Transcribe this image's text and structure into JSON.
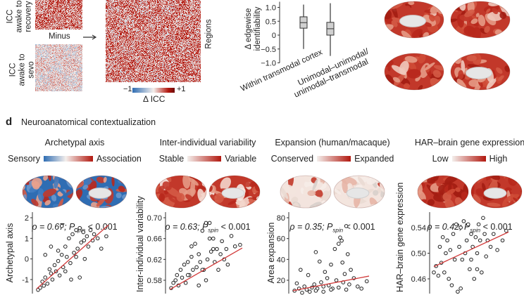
{
  "panel_c": {
    "matrix1_label_line1": "ICC",
    "matrix1_label_line2": "awake to",
    "matrix1_label_line3": "recovery",
    "minus_label": "Minus",
    "matrix2_label_line1": "ICC",
    "matrix2_label_line2": "awake to",
    "matrix2_label_line3": "sevo",
    "regions_label": "Regions",
    "colorbar_min": "−1",
    "colorbar_max": "+1",
    "colorbar_label": "Δ ICC",
    "colors": {
      "negative": "#2f6db3",
      "neutral": "#f4efec",
      "positive": "#b2180f"
    }
  },
  "chart_data": [
    {
      "type": "box",
      "ylabel_line1": "Δ edgewise",
      "ylabel_line2": "identifiability",
      "yticks": [
        "1.0",
        "0.5",
        "0",
        "−0.5",
        "−1.0"
      ],
      "ylim": [
        -1.0,
        1.0
      ],
      "categories": [
        "Within transmodal cortex",
        "Unimodal–unimodal/",
        "unimodal–transmodal"
      ],
      "boxes": [
        {
          "category": "Within transmodal cortex",
          "whisker_low": -0.5,
          "q1": 0.25,
          "median": 0.45,
          "q3": 0.66,
          "whisker_high": 1.1
        },
        {
          "category": "Unimodal–unimodal/unimodal–transmodal",
          "whisker_low": -0.75,
          "q1": 0.0,
          "median": 0.23,
          "q3": 0.46,
          "whisker_high": 1.15
        }
      ]
    },
    {
      "type": "scatter",
      "ylabel": "Archetypal axis",
      "yticks": [
        2,
        1,
        0,
        -1
      ],
      "ylim": [
        -1.6,
        2
      ],
      "fit": [
        -1.45,
        1.65
      ],
      "points": [
        [
          0.02,
          -1.5
        ],
        [
          0.05,
          -1.4
        ],
        [
          0.08,
          -1.1
        ],
        [
          0.1,
          -1.3
        ],
        [
          0.12,
          -0.9
        ],
        [
          0.15,
          -1.2
        ],
        [
          0.18,
          -0.5
        ],
        [
          0.2,
          -0.7
        ],
        [
          0.22,
          -1.0
        ],
        [
          0.25,
          -0.3
        ],
        [
          0.27,
          -0.6
        ],
        [
          0.3,
          -0.1
        ],
        [
          0.32,
          -0.8
        ],
        [
          0.35,
          0.2
        ],
        [
          0.37,
          -0.4
        ],
        [
          0.4,
          0.6
        ],
        [
          0.42,
          0.1
        ],
        [
          0.45,
          1.0
        ],
        [
          0.47,
          -0.2
        ],
        [
          0.5,
          1.2
        ],
        [
          0.52,
          0.3
        ],
        [
          0.55,
          1.4
        ],
        [
          0.57,
          0.5
        ],
        [
          0.6,
          1.5
        ],
        [
          0.62,
          0.8
        ],
        [
          0.65,
          1.3
        ],
        [
          0.67,
          0.0
        ],
        [
          0.7,
          1.1
        ],
        [
          0.72,
          0.6
        ],
        [
          0.75,
          1.4
        ],
        [
          0.78,
          0.9
        ],
        [
          0.8,
          1.2
        ],
        [
          0.85,
          1.0
        ],
        [
          0.9,
          0.5
        ],
        [
          0.97,
          1.1
        ],
        [
          0.12,
          0.2
        ],
        [
          0.2,
          0.6
        ],
        [
          0.35,
          1.6
        ],
        [
          0.48,
          -1.0
        ],
        [
          0.6,
          -0.9
        ],
        [
          0.4,
          -0.6
        ],
        [
          0.55,
          0.1
        ],
        [
          0.66,
          0.9
        ],
        [
          0.3,
          0.4
        ]
      ]
    },
    {
      "type": "scatter",
      "ylabel": "Inter-individual variability",
      "yticks": [
        0.7,
        0.66,
        0.62,
        0.58
      ],
      "ylim": [
        0.56,
        0.7
      ],
      "fit": [
        0.562,
        0.642
      ],
      "points": [
        [
          0.02,
          0.565
        ],
        [
          0.05,
          0.575
        ],
        [
          0.08,
          0.58
        ],
        [
          0.1,
          0.59
        ],
        [
          0.12,
          0.57
        ],
        [
          0.15,
          0.6
        ],
        [
          0.17,
          0.585
        ],
        [
          0.2,
          0.61
        ],
        [
          0.22,
          0.575
        ],
        [
          0.25,
          0.615
        ],
        [
          0.27,
          0.59
        ],
        [
          0.3,
          0.625
        ],
        [
          0.32,
          0.6
        ],
        [
          0.35,
          0.65
        ],
        [
          0.37,
          0.605
        ],
        [
          0.4,
          0.63
        ],
        [
          0.42,
          0.615
        ],
        [
          0.45,
          0.675
        ],
        [
          0.47,
          0.6
        ],
        [
          0.5,
          0.69
        ],
        [
          0.52,
          0.62
        ],
        [
          0.55,
          0.69
        ],
        [
          0.57,
          0.635
        ],
        [
          0.6,
          0.66
        ],
        [
          0.62,
          0.615
        ],
        [
          0.65,
          0.64
        ],
        [
          0.67,
          0.6
        ],
        [
          0.7,
          0.63
        ],
        [
          0.72,
          0.655
        ],
        [
          0.75,
          0.62
        ],
        [
          0.78,
          0.64
        ],
        [
          0.8,
          0.61
        ],
        [
          0.85,
          0.665
        ],
        [
          0.9,
          0.645
        ],
        [
          0.97,
          0.648
        ],
        [
          0.4,
          0.57
        ],
        [
          0.5,
          0.58
        ],
        [
          0.3,
          0.645
        ],
        [
          0.6,
          0.64
        ],
        [
          0.45,
          0.6
        ],
        [
          0.55,
          0.66
        ],
        [
          0.25,
          0.59
        ]
      ]
    },
    {
      "type": "scatter",
      "ylabel": "Area expansion",
      "yticks": [
        80,
        60,
        40,
        20
      ],
      "ylim": [
        0,
        80
      ],
      "fit": [
        10,
        24
      ],
      "points": [
        [
          0.02,
          10
        ],
        [
          0.05,
          17
        ],
        [
          0.08,
          12
        ],
        [
          0.1,
          30
        ],
        [
          0.12,
          8
        ],
        [
          0.15,
          14
        ],
        [
          0.18,
          11
        ],
        [
          0.2,
          25
        ],
        [
          0.22,
          9
        ],
        [
          0.25,
          13
        ],
        [
          0.28,
          16
        ],
        [
          0.3,
          47
        ],
        [
          0.32,
          12
        ],
        [
          0.35,
          38
        ],
        [
          0.37,
          18
        ],
        [
          0.4,
          14
        ],
        [
          0.42,
          28
        ],
        [
          0.45,
          22
        ],
        [
          0.47,
          15
        ],
        [
          0.5,
          35
        ],
        [
          0.52,
          12
        ],
        [
          0.55,
          50
        ],
        [
          0.57,
          20
        ],
        [
          0.6,
          55
        ],
        [
          0.62,
          61
        ],
        [
          0.64,
          58
        ],
        [
          0.66,
          18
        ],
        [
          0.68,
          26
        ],
        [
          0.7,
          72
        ],
        [
          0.72,
          45
        ],
        [
          0.74,
          16
        ],
        [
          0.76,
          30
        ],
        [
          0.8,
          22
        ],
        [
          0.85,
          14
        ],
        [
          0.9,
          12
        ],
        [
          0.97,
          19
        ],
        [
          0.4,
          9
        ],
        [
          0.5,
          11
        ],
        [
          0.6,
          13
        ],
        [
          0.7,
          11
        ],
        [
          0.65,
          37
        ],
        [
          0.3,
          10
        ]
      ]
    },
    {
      "type": "scatter",
      "ylabel": "HAR–brain gene expression",
      "yticks": [
        0.54,
        0.5,
        0.46
      ],
      "ylim": [
        0.43,
        0.56
      ],
      "fit": [
        0.479,
        0.533
      ],
      "points": [
        [
          0.0,
          0.47
        ],
        [
          0.03,
          0.48
        ],
        [
          0.06,
          0.465
        ],
        [
          0.08,
          0.51
        ],
        [
          0.1,
          0.485
        ],
        [
          0.12,
          0.525
        ],
        [
          0.14,
          0.47
        ],
        [
          0.16,
          0.5
        ],
        [
          0.18,
          0.52
        ],
        [
          0.2,
          0.46
        ],
        [
          0.22,
          0.505
        ],
        [
          0.24,
          0.45
        ],
        [
          0.26,
          0.53
        ],
        [
          0.28,
          0.49
        ],
        [
          0.3,
          0.545
        ],
        [
          0.32,
          0.44
        ],
        [
          0.34,
          0.51
        ],
        [
          0.36,
          0.54
        ],
        [
          0.38,
          0.49
        ],
        [
          0.4,
          0.55
        ],
        [
          0.42,
          0.5
        ],
        [
          0.44,
          0.52
        ],
        [
          0.46,
          0.545
        ],
        [
          0.48,
          0.475
        ],
        [
          0.5,
          0.53
        ],
        [
          0.52,
          0.51
        ],
        [
          0.54,
          0.46
        ],
        [
          0.56,
          0.525
        ],
        [
          0.58,
          0.5
        ],
        [
          0.6,
          0.545
        ],
        [
          0.62,
          0.52
        ],
        [
          0.64,
          0.47
        ],
        [
          0.66,
          0.555
        ],
        [
          0.68,
          0.53
        ],
        [
          0.7,
          0.495
        ],
        [
          0.72,
          0.52
        ],
        [
          0.76,
          0.51
        ],
        [
          0.8,
          0.53
        ],
        [
          0.85,
          0.505
        ],
        [
          0.92,
          0.52
        ],
        [
          0.97,
          0.535
        ],
        [
          0.36,
          0.445
        ],
        [
          0.5,
          0.49
        ],
        [
          0.58,
          0.475
        ]
      ]
    }
  ],
  "panel_d": {
    "letter": "d",
    "heading": "Neuroanatomical contextualization",
    "columns": [
      {
        "title": "Archetypal axis",
        "low": "Sensory",
        "high": "Association",
        "rho": "ρ = 0.67; ",
        "p": "P",
        "p_sub": "spin",
        "p_val": "< 0.001",
        "low_color": "#2f6db3",
        "high_color": "#b2180f"
      },
      {
        "title": "Inter-individual variability",
        "low": "Stable",
        "high": "Variable",
        "rho": "ρ = 0.63; ",
        "p": "P",
        "p_sub": "spin",
        "p_val": "< 0.001",
        "low_color": "#f6e8e2",
        "high_color": "#b2180f"
      },
      {
        "title": "Expansion (human/macaque)",
        "low": "Conserved",
        "high": "Expanded",
        "rho": "ρ = 0.35; ",
        "p": "P",
        "p_sub": "spin",
        "p_val": "< 0.001",
        "low_color": "#f6e8e2",
        "high_color": "#b2180f"
      },
      {
        "title": "HAR–brain gene expression",
        "low": "Low",
        "high": "High",
        "rho": "ρ = 0.42; ",
        "p": "P",
        "p_sub": "spin",
        "p_val": "< 0.001",
        "low_color": "#f6e8e2",
        "high_color": "#b2180f"
      }
    ]
  }
}
